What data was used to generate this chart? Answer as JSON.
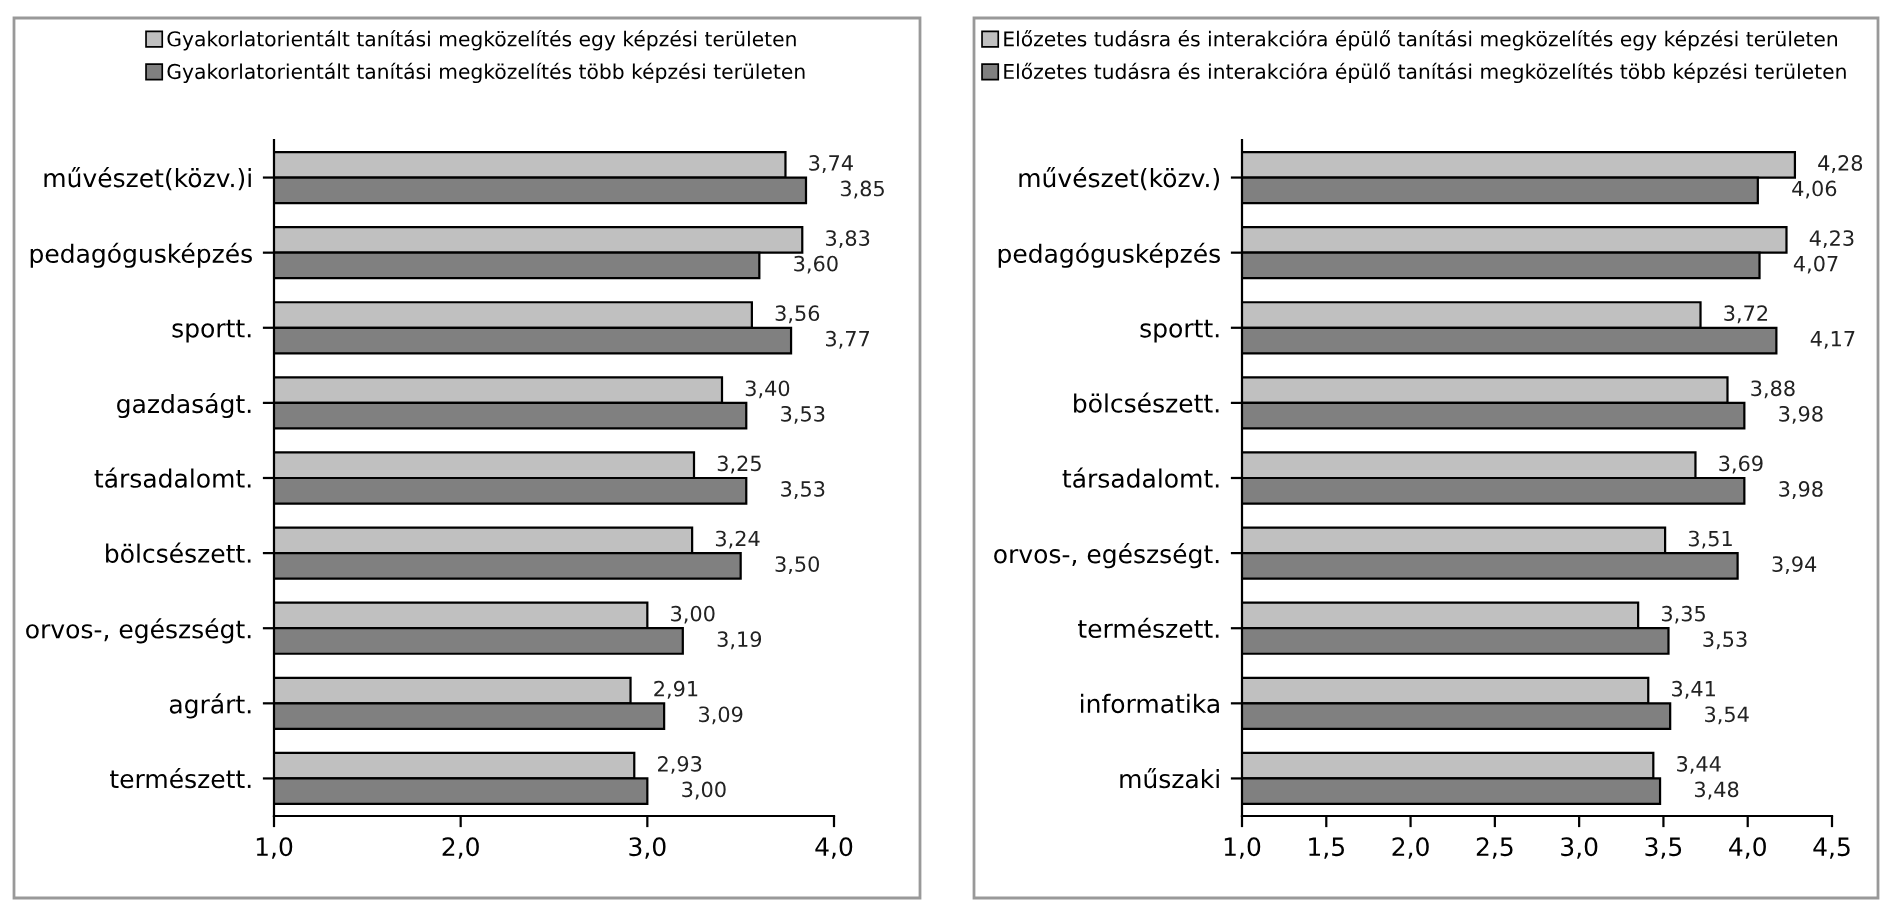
{
  "chart_data": [
    {
      "type": "bar",
      "orientation": "horizontal",
      "legend": "top",
      "grid": false,
      "categories": [
        "művészet(közv.)i",
        "pedagógusképzés",
        "sportt.",
        "gazdaságt.",
        "társadalomt.",
        "bölcsészett.",
        "orvos-, egészségt.",
        "agrárt.",
        "természett."
      ],
      "series": [
        {
          "name": "Gyakorlatorientált tanítási megközelítés egy képzési területen",
          "color": "#c0c0c0",
          "values": [
            3.74,
            3.83,
            3.56,
            3.4,
            3.25,
            3.24,
            3.0,
            2.91,
            2.93
          ],
          "value_labels": [
            "3,74",
            "3,83",
            "3,56",
            "3,40",
            "3,25",
            "3,24",
            "3,00",
            "2,91",
            "2,93"
          ]
        },
        {
          "name": "Gyakorlatorientált tanítási megközelítés több képzési területen",
          "color": "#808080",
          "values": [
            3.85,
            3.6,
            3.77,
            3.53,
            3.53,
            3.5,
            3.19,
            3.09,
            3.0
          ],
          "value_labels": [
            "3,85",
            "3,60",
            "3,77",
            "3,53",
            "3,53",
            "3,50",
            "3,19",
            "3,09",
            "3,00"
          ]
        }
      ],
      "xlim": [
        1,
        4
      ],
      "xticks": [
        {
          "value": 1,
          "label": "1,0"
        },
        {
          "value": 2,
          "label": "2,0"
        },
        {
          "value": 3,
          "label": "3,0"
        },
        {
          "value": 4,
          "label": "4,0"
        }
      ]
    },
    {
      "type": "bar",
      "orientation": "horizontal",
      "legend": "top",
      "grid": false,
      "categories": [
        "művészet(közv.)",
        "pedagógusképzés",
        "sportt.",
        "bölcsészett.",
        "társadalomt.",
        "orvos-, egészségt.",
        "természett.",
        "informatika",
        "műszaki"
      ],
      "series": [
        {
          "name": "Előzetes tudásra és interakcióra épülő tanítási megközelítés egy képzési területen",
          "color": "#c0c0c0",
          "values": [
            4.28,
            4.23,
            3.72,
            3.88,
            3.69,
            3.51,
            3.35,
            3.41,
            3.44
          ],
          "value_labels": [
            "4,28",
            "4,23",
            "3,72",
            "3,88",
            "3,69",
            "3,51",
            "3,35",
            "3,41",
            "3,44"
          ]
        },
        {
          "name": "Előzetes tudásra és interakcióra épülő tanítási megközelítés több képzési területen",
          "color": "#808080",
          "values": [
            4.06,
            4.07,
            4.17,
            3.98,
            3.98,
            3.94,
            3.53,
            3.54,
            3.48
          ],
          "value_labels": [
            "4,06",
            "4,07",
            "4,17",
            "3,98",
            "3,98",
            "3,94",
            "3,53",
            "3,54",
            "3,48"
          ]
        }
      ],
      "xlim": [
        1,
        4.5
      ],
      "xticks": [
        {
          "value": 1,
          "label": "1,0"
        },
        {
          "value": 1.5,
          "label": "1,5"
        },
        {
          "value": 2,
          "label": "2,0"
        },
        {
          "value": 2.5,
          "label": "2,5"
        },
        {
          "value": 3,
          "label": "3,0"
        },
        {
          "value": 3.5,
          "label": "3,5"
        },
        {
          "value": 4,
          "label": "4,0"
        },
        {
          "value": 4.5,
          "label": "4,5"
        }
      ]
    }
  ]
}
